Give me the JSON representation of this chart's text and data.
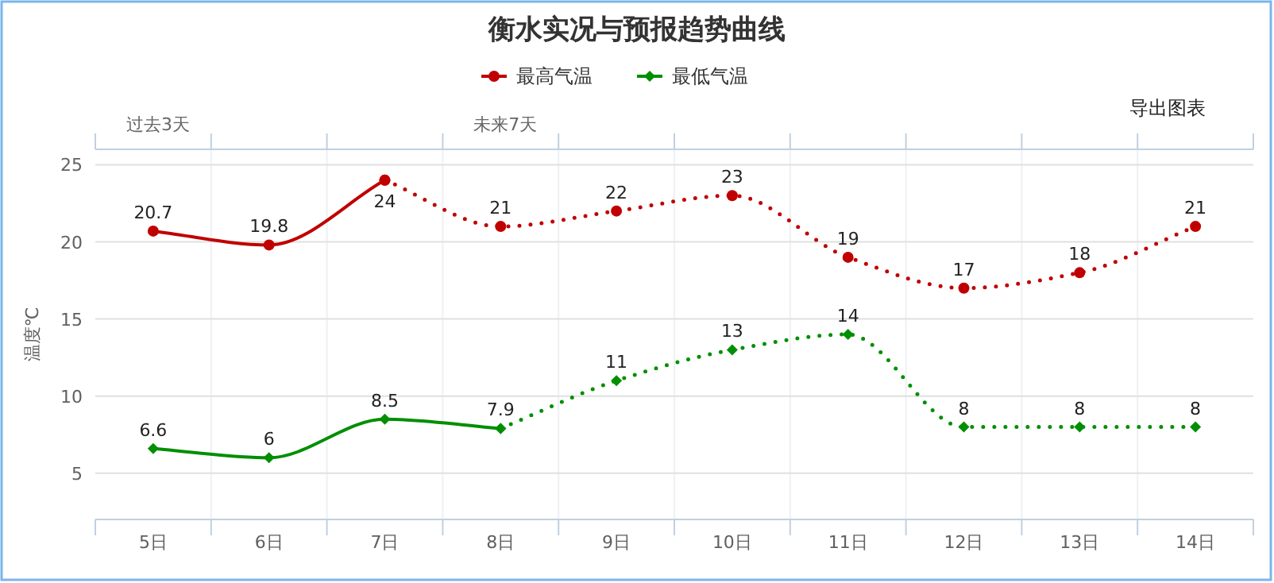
{
  "chart_data": {
    "type": "line",
    "title": "衡水实况与预报趋势曲线",
    "ylabel": "温度℃",
    "categories": [
      "5日",
      "6日",
      "7日",
      "8日",
      "9日",
      "10日",
      "11日",
      "12日",
      "13日",
      "14日"
    ],
    "series": [
      {
        "name": "最高气温",
        "color": "#c00000",
        "marker": "circle",
        "line_style": "solid",
        "values": [
          20.7,
          19.8,
          24,
          null,
          null,
          null,
          null,
          null,
          null,
          null
        ],
        "value_labels": [
          "20.7",
          "19.8",
          "24",
          null,
          null,
          null,
          null,
          null,
          null,
          null
        ]
      },
      {
        "color": "#c00000",
        "marker": "circle",
        "line_style": "dotted",
        "values": [
          null,
          null,
          24,
          21,
          22,
          23,
          19,
          17,
          18,
          21
        ],
        "value_labels": [
          null,
          null,
          null,
          "21",
          "22",
          "23",
          "19",
          "17",
          "18",
          "21"
        ]
      },
      {
        "name": "最低气温",
        "color": "#008f00",
        "marker": "diamond",
        "line_style": "solid",
        "values": [
          6.6,
          6,
          8.5,
          7.9,
          null,
          null,
          null,
          null,
          null,
          null
        ],
        "value_labels": [
          "6.6",
          "6",
          "8.5",
          "7.9",
          null,
          null,
          null,
          null,
          null,
          null
        ]
      },
      {
        "color": "#008f00",
        "marker": "diamond",
        "line_style": "dotted",
        "values": [
          null,
          null,
          null,
          7.9,
          11,
          13,
          14,
          8,
          8,
          8
        ],
        "value_labels": [
          null,
          null,
          null,
          null,
          "11",
          "13",
          "14",
          "8",
          "8",
          "8"
        ]
      }
    ],
    "ylim": [
      2,
      26
    ],
    "yticks": [
      5,
      10,
      15,
      20,
      25
    ],
    "grid": true,
    "legend": "top",
    "annotations": [
      "过去3天",
      "未来7天",
      "导出图表"
    ]
  }
}
